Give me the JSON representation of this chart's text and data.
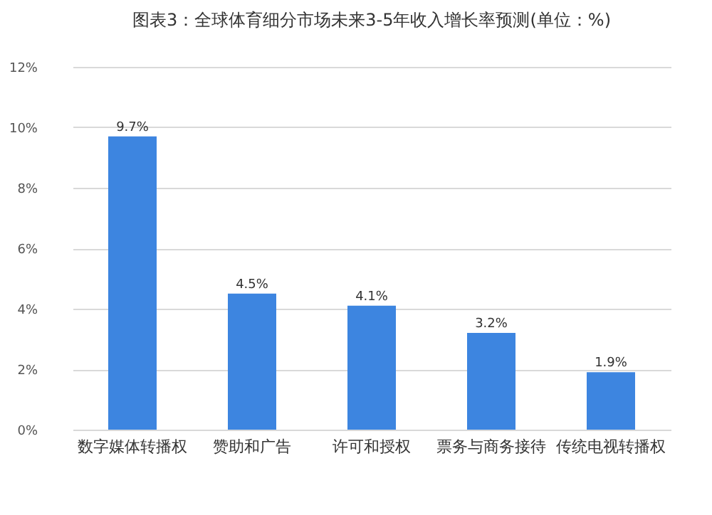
{
  "chart_data": {
    "type": "bar",
    "title": "图表3：全球体育细分市场未来3-5年收入增长率预测(单位：%)",
    "categories": [
      "数字媒体转播权",
      "赞助和广告",
      "许可和授权",
      "票务与商务接待",
      "传统电视转播权"
    ],
    "values": [
      9.7,
      4.5,
      4.1,
      3.2,
      1.9
    ],
    "color": "#3d85e0",
    "value_labels": [
      "9.7%",
      "4.5%",
      "4.1%",
      "3.2%",
      "1.9%"
    ],
    "ylim": [
      0,
      12
    ],
    "yticks": [
      {
        "value": 0,
        "label": "0%"
      },
      {
        "value": 2,
        "label": "2%"
      },
      {
        "value": 4,
        "label": "4%"
      },
      {
        "value": 6,
        "label": "6%"
      },
      {
        "value": 8,
        "label": "8%"
      },
      {
        "value": 10,
        "label": "10%"
      },
      {
        "value": 12,
        "label": "12%"
      }
    ],
    "grid": "y"
  }
}
